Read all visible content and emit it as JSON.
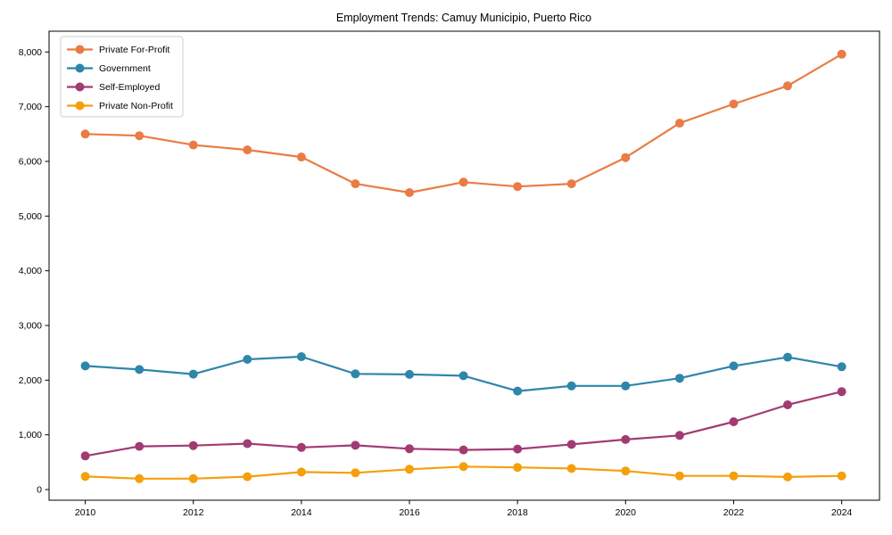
{
  "chart_data": {
    "type": "line",
    "title": "Employment Trends: Camuy Municipio, Puerto Rico",
    "xlabel": "",
    "ylabel": "",
    "x": [
      2010,
      2011,
      2012,
      2013,
      2014,
      2015,
      2016,
      2017,
      2018,
      2019,
      2020,
      2021,
      2022,
      2023,
      2024
    ],
    "series": [
      {
        "name": "Private For-Profit",
        "color": "#e97c44",
        "values": [
          6500,
          6470,
          6300,
          6210,
          6080,
          5590,
          5430,
          5620,
          5540,
          5590,
          6070,
          6700,
          7050,
          7380,
          7960
        ]
      },
      {
        "name": "Government",
        "color": "#2e86ab",
        "values": [
          2260,
          2195,
          2110,
          2380,
          2430,
          2115,
          2105,
          2080,
          1800,
          1895,
          1895,
          2035,
          2260,
          2420,
          2245
        ]
      },
      {
        "name": "Self-Employed",
        "color": "#a23b72",
        "values": [
          615,
          790,
          805,
          840,
          770,
          810,
          745,
          725,
          740,
          825,
          915,
          990,
          1240,
          1550,
          1790
        ]
      },
      {
        "name": "Private Non-Profit",
        "color": "#f59f0b",
        "values": [
          240,
          200,
          200,
          235,
          320,
          305,
          370,
          420,
          405,
          385,
          340,
          250,
          250,
          230,
          250
        ]
      }
    ],
    "xticks": [
      2010,
      2012,
      2014,
      2016,
      2018,
      2020,
      2022,
      2024
    ],
    "xtick_labels": [
      "2010",
      "2012",
      "2014",
      "2016",
      "2018",
      "2020",
      "2022",
      "2024"
    ],
    "yticks": [
      0,
      1000,
      2000,
      3000,
      4000,
      5000,
      6000,
      7000,
      8000
    ],
    "ytick_labels": [
      "0",
      "1,000",
      "2,000",
      "3,000",
      "4,000",
      "5,000",
      "6,000",
      "7,000",
      "8,000"
    ],
    "xlim": [
      2009.33,
      2024.7
    ],
    "ylim": [
      -195,
      8380
    ],
    "grid": false,
    "marker": "circle",
    "legend_position": "upper-left"
  }
}
